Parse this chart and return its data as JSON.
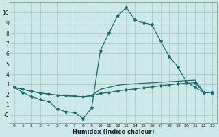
{
  "xlabel": "Humidex (Indice chaleur)",
  "bg_color": "#cce8e8",
  "grid_color": "#aacccc",
  "line_color": "#1a6b6b",
  "x_values": [
    0,
    1,
    2,
    3,
    4,
    5,
    6,
    7,
    8,
    9,
    10,
    11,
    12,
    13,
    14,
    15,
    16,
    17,
    18,
    19,
    20,
    21,
    22,
    23
  ],
  "series1": [
    2.7,
    2.2,
    1.8,
    1.5,
    1.3,
    0.6,
    0.3,
    0.25,
    -0.35,
    0.7,
    6.3,
    8.0,
    9.7,
    10.5,
    9.3,
    9.0,
    8.8,
    7.2,
    5.7,
    4.7,
    3.2,
    2.7,
    2.2,
    2.2
  ],
  "series2": [
    2.7,
    2.5,
    2.3,
    2.15,
    2.05,
    1.95,
    1.9,
    1.85,
    1.8,
    1.9,
    2.1,
    2.2,
    2.35,
    2.45,
    2.55,
    2.65,
    2.75,
    2.85,
    2.95,
    3.05,
    3.1,
    3.15,
    2.2,
    2.2
  ],
  "series3": [
    2.7,
    2.5,
    2.3,
    2.15,
    2.05,
    1.95,
    1.9,
    1.85,
    1.8,
    1.9,
    2.5,
    2.7,
    2.9,
    3.0,
    3.05,
    3.1,
    3.15,
    3.2,
    3.25,
    3.3,
    3.35,
    3.4,
    2.2,
    2.2
  ],
  "ylim": [
    -0.8,
    11.0
  ],
  "xlim": [
    -0.5,
    23.5
  ],
  "yticks": [
    0,
    1,
    2,
    3,
    4,
    5,
    6,
    7,
    8,
    9,
    10
  ],
  "ytick_labels": [
    "-0",
    "1",
    "2",
    "3",
    "4",
    "5",
    "6",
    "7",
    "8",
    "9",
    "10"
  ],
  "xticks": [
    0,
    1,
    2,
    3,
    4,
    5,
    6,
    7,
    8,
    9,
    10,
    11,
    12,
    13,
    14,
    15,
    16,
    17,
    18,
    19,
    20,
    21,
    22,
    23
  ]
}
